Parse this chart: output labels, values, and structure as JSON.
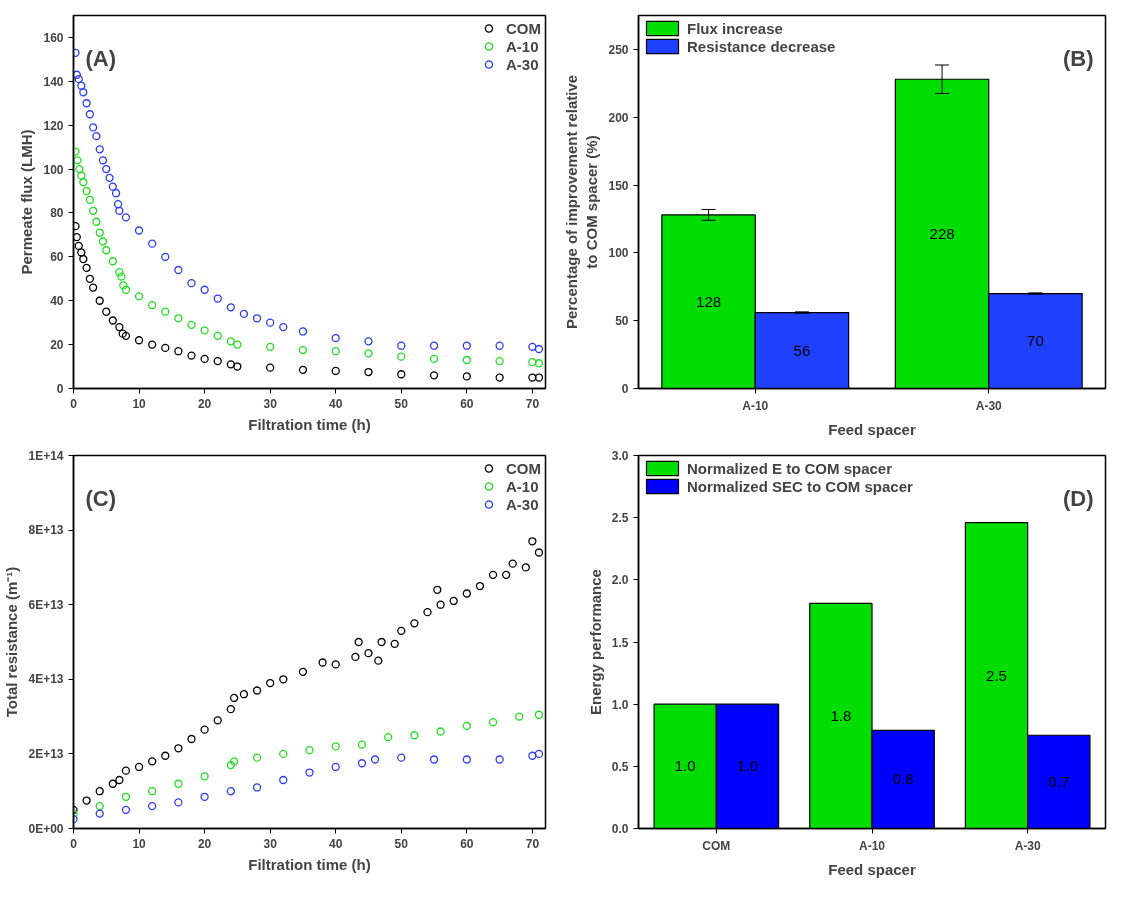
{
  "chart_data": [
    {
      "type": "scatter",
      "annotations": [
        "(A)"
      ],
      "xlabel": "Filtration time (h)",
      "ylabel": "Permeate flux (LMH)",
      "xlim": [
        0,
        72
      ],
      "ylim": [
        0,
        170
      ],
      "xticks": [
        0,
        10,
        20,
        30,
        40,
        50,
        60,
        70
      ],
      "yticks": [
        0,
        20,
        40,
        60,
        80,
        100,
        120,
        140,
        160
      ],
      "legend": "top right",
      "marker": "circle",
      "grid": false,
      "series": [
        {
          "name": "COM",
          "color": "#000000",
          "x": [
            0.3,
            0.5,
            0.8,
            1.2,
            1.5,
            2,
            2.5,
            3,
            4,
            5,
            6,
            7,
            7.5,
            8,
            10,
            12,
            14,
            16,
            18,
            20,
            22,
            24,
            25,
            30,
            35,
            40,
            45,
            50,
            55,
            60,
            65,
            70,
            71
          ],
          "values": [
            74,
            69,
            65,
            62,
            59,
            55,
            50,
            46,
            40,
            35,
            31,
            28,
            25,
            24,
            22,
            20,
            18.5,
            17,
            15,
            13.5,
            12.5,
            11,
            10,
            9.5,
            8.5,
            8,
            7.5,
            6.5,
            6,
            5.5,
            5,
            5,
            5
          ]
        },
        {
          "name": "A-10",
          "color": "#22dd22",
          "x": [
            0.3,
            0.6,
            0.9,
            1.2,
            1.5,
            2,
            2.5,
            3,
            3.5,
            4,
            4.5,
            5,
            6,
            7,
            7.3,
            7.6,
            8,
            10,
            12,
            14,
            16,
            18,
            20,
            22,
            24,
            25,
            30,
            35,
            40,
            45,
            50,
            55,
            60,
            65,
            70,
            71
          ],
          "values": [
            108,
            104,
            100,
            97,
            94,
            90,
            86,
            81,
            76,
            71,
            67,
            63,
            58,
            53,
            51,
            47,
            45,
            42,
            38,
            35,
            32,
            29,
            26.5,
            24,
            21.5,
            20,
            19,
            17.5,
            17,
            16,
            14.5,
            13.5,
            13,
            12.5,
            12,
            11.5
          ]
        },
        {
          "name": "A-30",
          "color": "#2a3cf0",
          "x": [
            0.3,
            0.5,
            0.8,
            1.2,
            1.5,
            2,
            2.5,
            3,
            3.5,
            4,
            4.5,
            5,
            5.5,
            6,
            6.5,
            6.8,
            7,
            8,
            10,
            12,
            14,
            16,
            18,
            20,
            22,
            24,
            26,
            28,
            30,
            32,
            35,
            40,
            45,
            50,
            55,
            60,
            65,
            70,
            71
          ],
          "values": [
            153,
            143,
            141,
            138,
            135,
            130,
            125,
            119,
            115,
            109,
            104,
            100,
            96,
            92,
            89,
            84,
            81,
            78,
            72,
            66,
            60,
            54,
            48,
            45,
            41,
            37,
            34,
            32,
            30,
            28,
            26,
            23,
            21.5,
            19.5,
            19.5,
            19.5,
            19.5,
            19,
            18
          ]
        }
      ]
    },
    {
      "type": "bar",
      "annotations": [
        "(B)"
      ],
      "xlabel": "Feed spacer",
      "ylabel": "Percentage of improvement relative\nto COM spacer (%)",
      "categories": [
        "A-10",
        "A-30"
      ],
      "ylim": [
        0,
        275
      ],
      "yticks": [
        0,
        50,
        100,
        150,
        200,
        250
      ],
      "legend": "top left",
      "data_labels": true,
      "grid": false,
      "series": [
        {
          "name": "Flux increase",
          "color": "#00dd00",
          "values": [
            128,
            228
          ],
          "errors": [
            4,
            10.5
          ]
        },
        {
          "name": "Resistance decrease",
          "color": "#2040ff",
          "values": [
            56,
            70
          ],
          "errors": [
            0.5,
            0.5
          ]
        }
      ]
    },
    {
      "type": "scatter",
      "annotations": [
        "(C)"
      ],
      "xlabel": "Filtration time (h)",
      "ylabel": "Total resistance (m⁻¹)",
      "xlim": [
        0,
        72
      ],
      "ylim": [
        0,
        100000000000000.0
      ],
      "xticks": [
        0,
        10,
        20,
        30,
        40,
        50,
        60,
        70
      ],
      "yticks": [
        {
          "value": 0,
          "label": "0E+00"
        },
        {
          "value": 20000000000000.0,
          "label": "2E+13"
        },
        {
          "value": 40000000000000.0,
          "label": "4E+13"
        },
        {
          "value": 60000000000000.0,
          "label": "6E+13"
        },
        {
          "value": 80000000000000.0,
          "label": "8E+13"
        },
        {
          "value": 100000000000000.0,
          "label": "1E+14"
        }
      ],
      "legend": "top right",
      "marker": "circle",
      "grid": false,
      "series": [
        {
          "name": "COM",
          "color": "#000000",
          "x": [
            0,
            2,
            4,
            6,
            7,
            8,
            10,
            12,
            14,
            16,
            18,
            20,
            22,
            24,
            24.5,
            26,
            28,
            30,
            32,
            35,
            38,
            40,
            43,
            43.5,
            45,
            46.5,
            47,
            49,
            50,
            52,
            54,
            55.5,
            56,
            58,
            60,
            62,
            64,
            66,
            67,
            69,
            70,
            71
          ],
          "values": [
            5000000000000.0,
            7500000000000.0,
            10000000000000.0,
            12000000000000.0,
            13000000000000.0,
            15500000000000.0,
            16500000000000.0,
            18000000000000.0,
            19500000000000.0,
            21500000000000.0,
            24000000000000.0,
            26500000000000.0,
            29000000000000.0,
            32000000000000.0,
            35000000000000.0,
            36000000000000.0,
            37000000000000.0,
            39000000000000.0,
            40000000000000.0,
            42000000000000.0,
            44500000000000.0,
            44000000000000.0,
            46000000000000.0,
            50000000000000.0,
            47000000000000.0,
            45000000000000.0,
            50000000000000.0,
            49500000000000.0,
            53000000000000.0,
            55000000000000.0,
            58000000000000.0,
            64000000000000.0,
            60000000000000.0,
            61000000000000.0,
            63000000000000.0,
            65000000000000.0,
            68000000000000.0,
            68000000000000.0,
            71000000000000.0,
            70000000000000.0,
            77000000000000.0,
            74000000000000.0
          ]
        },
        {
          "name": "A-10",
          "color": "#22dd22",
          "x": [
            0,
            4,
            8,
            12,
            16,
            20,
            24,
            24.5,
            28,
            32,
            36,
            40,
            44,
            48,
            52,
            56,
            60,
            64,
            68,
            71
          ],
          "values": [
            4000000000000.0,
            6000000000000.0,
            8500000000000.0,
            10000000000000.0,
            12000000000000.0,
            14000000000000.0,
            17000000000000.0,
            18000000000000.0,
            19000000000000.0,
            20000000000000.0,
            21000000000000.0,
            22000000000000.0,
            22500000000000.0,
            24500000000000.0,
            25000000000000.0,
            26000000000000.0,
            27500000000000.0,
            28500000000000.0,
            30000000000000.0,
            30500000000000.0
          ]
        },
        {
          "name": "A-30",
          "color": "#2a3cf0",
          "x": [
            0,
            4,
            8,
            12,
            16,
            20,
            24,
            28,
            32,
            36,
            40,
            44,
            46,
            50,
            55,
            60,
            65,
            70,
            71
          ],
          "values": [
            2500000000000.0,
            4000000000000.0,
            5000000000000.0,
            6000000000000.0,
            7000000000000.0,
            8500000000000.0,
            10000000000000.0,
            11000000000000.0,
            13000000000000.0,
            15000000000000.0,
            16500000000000.0,
            17500000000000.0,
            18500000000000.0,
            19000000000000.0,
            18500000000000.0,
            18500000000000.0,
            18500000000000.0,
            19500000000000.0,
            20000000000000.0
          ]
        }
      ]
    },
    {
      "type": "bar",
      "annotations": [
        "(D)"
      ],
      "xlabel": "Feed spacer",
      "ylabel": "Energy performance",
      "categories": [
        "COM",
        "A-10",
        "A-30"
      ],
      "ylim": [
        0,
        3
      ],
      "yticks": [
        {
          "value": 0,
          "label": "0.0"
        },
        {
          "value": 0.5,
          "label": "0.5"
        },
        {
          "value": 1,
          "label": "1.0"
        },
        {
          "value": 1.5,
          "label": "1.5"
        },
        {
          "value": 2,
          "label": "2.0"
        },
        {
          "value": 2.5,
          "label": "2.5"
        },
        {
          "value": 3,
          "label": "3.0"
        }
      ],
      "legend": "top left",
      "grid": false,
      "series": [
        {
          "name": "Normalized E to COM spacer",
          "color": "#00dd00",
          "values": [
            1.0,
            1.81,
            2.46
          ],
          "value_labels": [
            "1.0",
            "1.8",
            "2.5"
          ]
        },
        {
          "name": "Normalized SEC to COM spacer",
          "color": "#0000ff",
          "values": [
            1.0,
            0.79,
            0.75
          ],
          "value_labels": [
            "1.0",
            "0.8",
            "0.7"
          ]
        }
      ]
    }
  ]
}
